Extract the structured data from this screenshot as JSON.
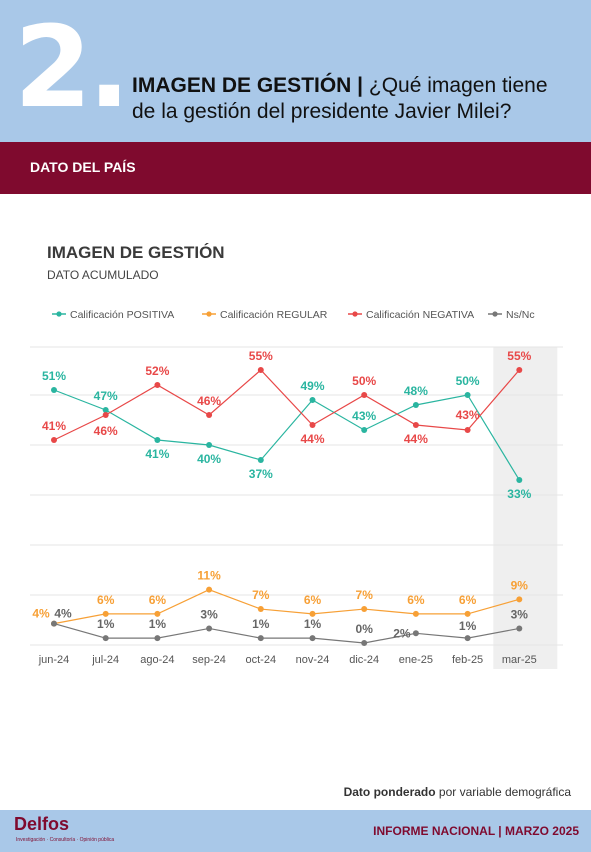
{
  "header": {
    "number": "2.",
    "title_bold": "IMAGEN DE GESTIÓN |",
    "title_rest": " ¿Qué imagen tiene",
    "title_line2": "de la gestión del presidente Javier Milei?"
  },
  "section_label": "DATO DEL PAÍS",
  "chart_data": {
    "type": "line",
    "title": "IMAGEN DE GESTIÓN",
    "subtitle": "DATO ACUMULADO",
    "legend_position": "top",
    "grid": true,
    "x": [
      "jun-24",
      "jul-24",
      "ago-24",
      "sep-24",
      "oct-24",
      "nov-24",
      "dic-24",
      "ene-25",
      "feb-25",
      "mar-25"
    ],
    "highlight_category": "mar-25",
    "series": [
      {
        "name": "Calificación POSITIVA",
        "color": "#2ab5a0",
        "values": [
          51,
          47,
          41,
          40,
          37,
          49,
          43,
          48,
          50,
          33
        ],
        "labels": [
          "51%",
          "47%",
          "41%",
          "40%",
          "37%",
          "49%",
          "43%",
          "48%",
          "50%",
          "33%"
        ]
      },
      {
        "name": "Calificación REGULAR",
        "color": "#f7a036",
        "values": [
          4,
          6,
          6,
          11,
          7,
          6,
          7,
          6,
          6,
          9
        ],
        "labels": [
          "4%",
          "6%",
          "6%",
          "11%",
          "7%",
          "6%",
          "7%",
          "6%",
          "6%",
          "9%"
        ]
      },
      {
        "name": "Calificación NEGATIVA",
        "color": "#e84848",
        "values": [
          41,
          46,
          52,
          46,
          55,
          44,
          50,
          44,
          43,
          55
        ],
        "labels": [
          "41%",
          "46%",
          "52%",
          "46%",
          "55%",
          "44%",
          "50%",
          "44%",
          "43%",
          "55%"
        ]
      },
      {
        "name": "Ns/Nc",
        "color": "#777777",
        "values": [
          4,
          1,
          1,
          3,
          1,
          1,
          0,
          2,
          1,
          3
        ],
        "labels": [
          "4%",
          "1%",
          "1%",
          "3%",
          "1%",
          "1%",
          "0%",
          "2%",
          "1%",
          "3%"
        ]
      }
    ]
  },
  "footnote": {
    "bold": "Dato ponderado",
    "rest": " por variable demográfica"
  },
  "footer": {
    "logo": "Delfos",
    "logo_sub": "Investigación · Consultoría · Opinión pública",
    "right": "INFORME NACIONAL | MARZO 2025"
  }
}
